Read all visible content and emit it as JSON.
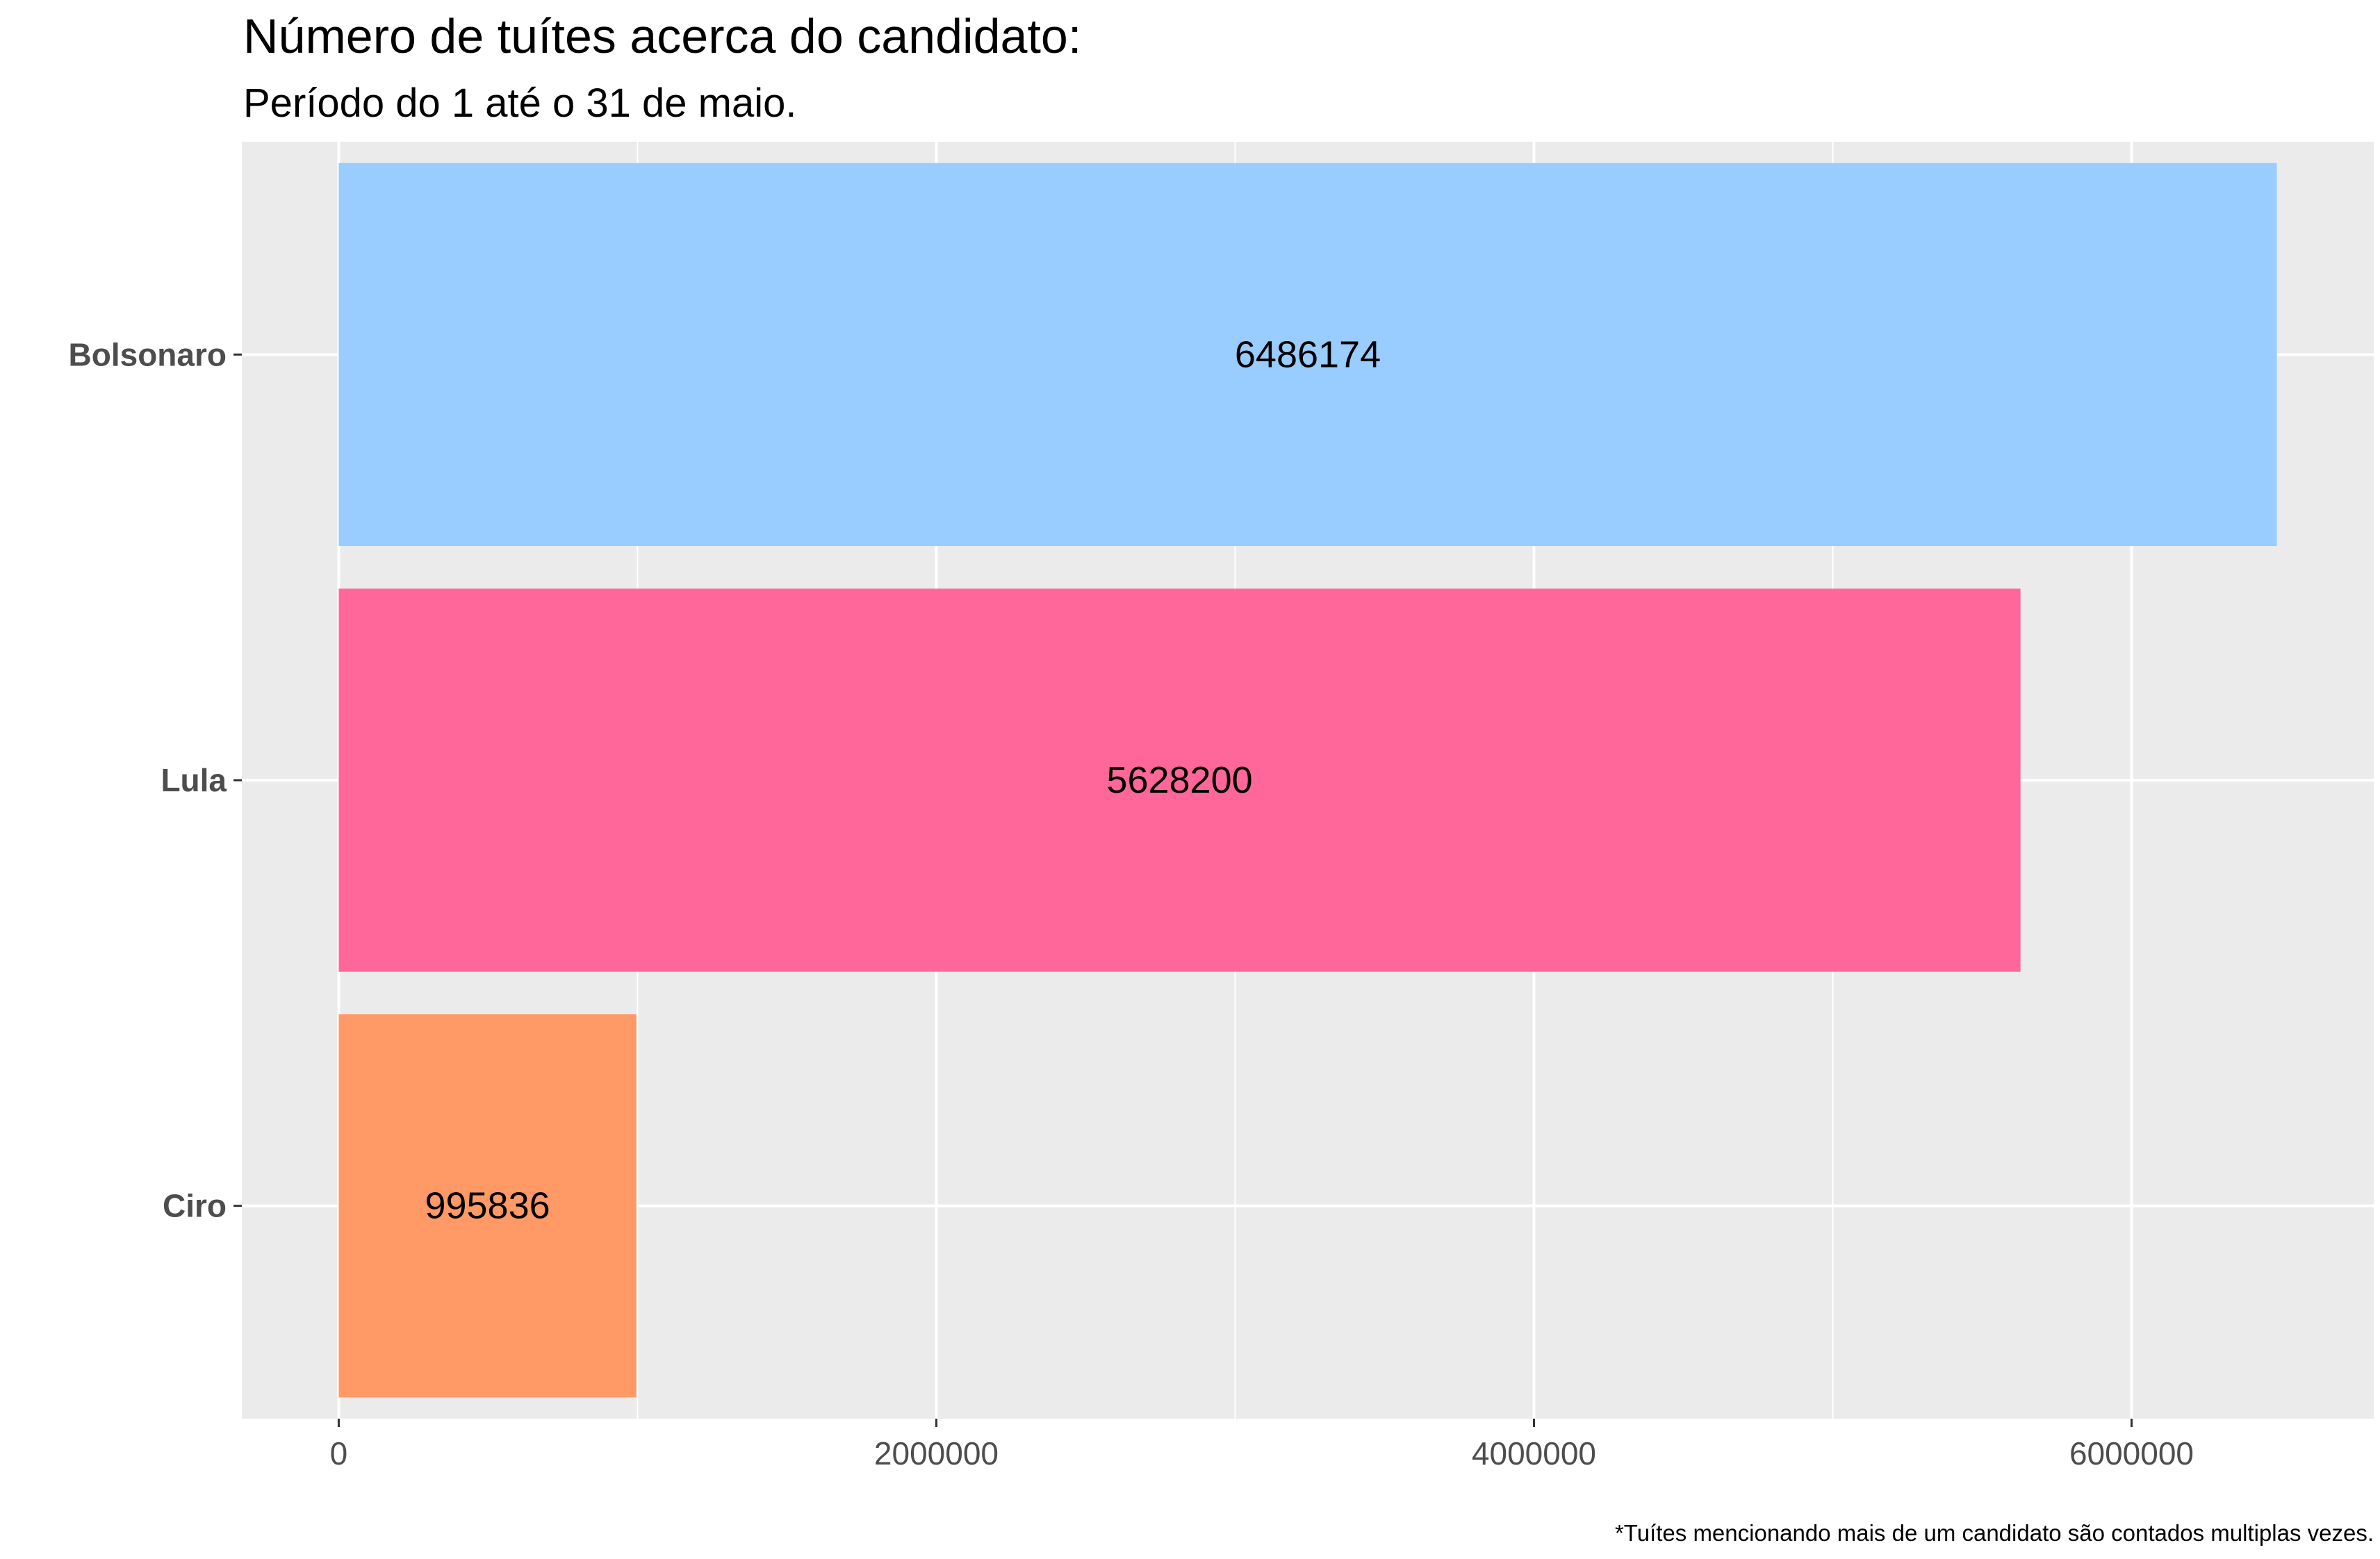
{
  "chart_data": {
    "type": "bar",
    "orientation": "horizontal",
    "title": "Número de tuítes acerca do candidato:",
    "subtitle": "Período do 1 até o 31 de maio.",
    "caption": "*Tuítes mencionando mais de um candidato são contados multiplas vezes.",
    "categories": [
      "Bolsonaro",
      "Lula",
      "Ciro"
    ],
    "values": [
      6486174,
      5628200,
      995836
    ],
    "data_labels": [
      "6486174",
      "5628200",
      "995836"
    ],
    "colors": [
      "#99ccff",
      "#ff6699",
      "#ff9966"
    ],
    "x_ticks": [
      0,
      2000000,
      4000000,
      6000000
    ],
    "x_tick_labels": [
      "0",
      "2000000",
      "4000000",
      "6000000"
    ],
    "xlim": [
      -324309,
      6810483
    ],
    "xlabel": "",
    "ylabel": "",
    "grid": true,
    "panel_background": "#ebebeb",
    "grid_color": "#ffffff",
    "legend": "none"
  }
}
